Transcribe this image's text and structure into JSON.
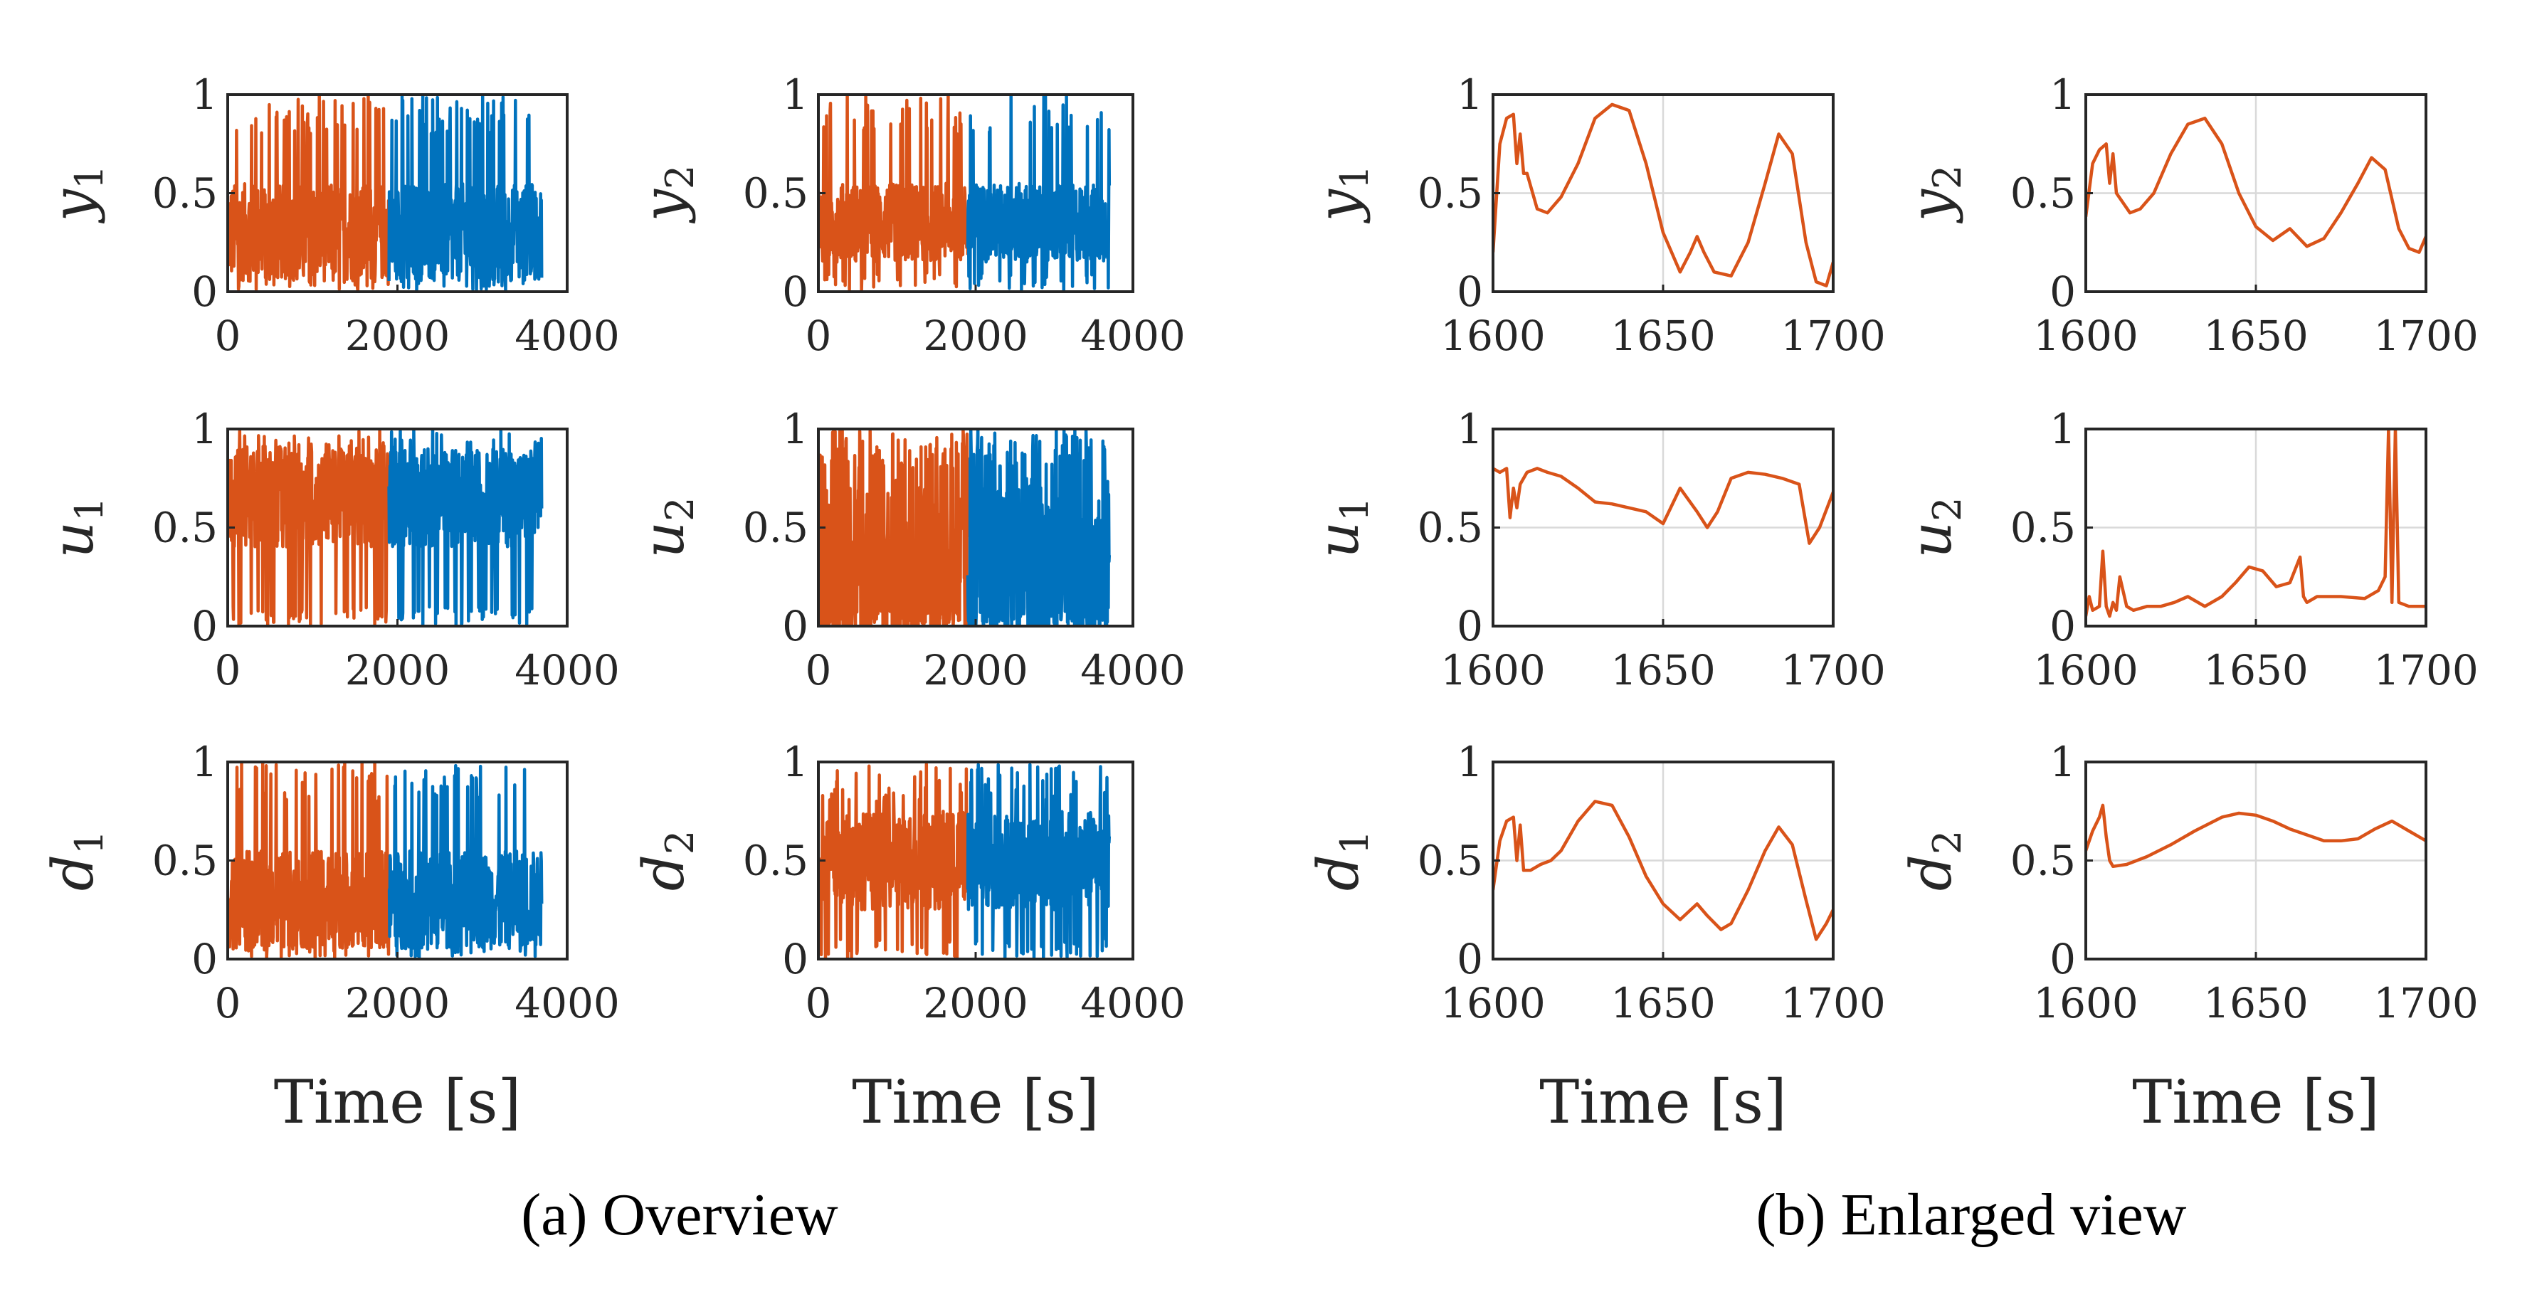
{
  "colors": {
    "train": "#D95319",
    "test": "#0072BD",
    "axis": "#262626",
    "grid": "#d9d9d9"
  },
  "captions": {
    "left": "(a) Overview",
    "right": "(b) Enlarged view"
  },
  "chart_data": [
    {
      "id": "ov-y1",
      "type": "line",
      "section": "overview",
      "ylabel_main": "y",
      "ylabel_sub": "1",
      "xlabel": "",
      "xlim": [
        0,
        4000
      ],
      "ylim": [
        0,
        1
      ],
      "xticks": [
        "0",
        "2000",
        "4000"
      ],
      "yticks": [
        "0",
        "0.5",
        "1"
      ],
      "grid": false,
      "segments": [
        {
          "name": "",
          "color": "train",
          "x_range": [
            0,
            1900
          ]
        },
        {
          "name": "",
          "color": "test",
          "x_range": [
            1900,
            3700
          ]
        }
      ]
    },
    {
      "id": "ov-y2",
      "type": "line",
      "section": "overview",
      "ylabel_main": "y",
      "ylabel_sub": "2",
      "xlabel": "",
      "xlim": [
        0,
        4000
      ],
      "ylim": [
        0,
        1
      ],
      "xticks": [
        "0",
        "2000",
        "4000"
      ],
      "yticks": [
        "0",
        "0.5",
        "1"
      ],
      "grid": false,
      "segments": [
        {
          "name": "",
          "color": "train",
          "x_range": [
            0,
            1900
          ]
        },
        {
          "name": "",
          "color": "test",
          "x_range": [
            1900,
            3700
          ]
        }
      ]
    },
    {
      "id": "ov-u1",
      "type": "line",
      "section": "overview",
      "ylabel_main": "u",
      "ylabel_sub": "1",
      "xlabel": "",
      "xlim": [
        0,
        4000
      ],
      "ylim": [
        0,
        1
      ],
      "xticks": [
        "0",
        "2000",
        "4000"
      ],
      "yticks": [
        "0",
        "0.5",
        "1"
      ],
      "grid": false,
      "segments": [
        {
          "name": "",
          "color": "train",
          "x_range": [
            0,
            1900
          ]
        },
        {
          "name": "",
          "color": "test",
          "x_range": [
            1900,
            3700
          ]
        }
      ]
    },
    {
      "id": "ov-u2",
      "type": "line",
      "section": "overview",
      "ylabel_main": "u",
      "ylabel_sub": "2",
      "xlabel": "",
      "xlim": [
        0,
        4000
      ],
      "ylim": [
        0,
        1
      ],
      "xticks": [
        "0",
        "2000",
        "4000"
      ],
      "yticks": [
        "0",
        "0.5",
        "1"
      ],
      "grid": false,
      "segments": [
        {
          "name": "",
          "color": "train",
          "x_range": [
            0,
            1900
          ]
        },
        {
          "name": "",
          "color": "test",
          "x_range": [
            1900,
            3700
          ]
        }
      ]
    },
    {
      "id": "ov-d1",
      "type": "line",
      "section": "overview",
      "ylabel_main": "d",
      "ylabel_sub": "1",
      "xlabel": "Time [s]",
      "xlim": [
        0,
        4000
      ],
      "ylim": [
        0,
        1
      ],
      "xticks": [
        "0",
        "2000",
        "4000"
      ],
      "yticks": [
        "0",
        "0.5",
        "1"
      ],
      "grid": false,
      "segments": [
        {
          "name": "",
          "color": "train",
          "x_range": [
            0,
            1900
          ]
        },
        {
          "name": "",
          "color": "test",
          "x_range": [
            1900,
            3700
          ]
        }
      ]
    },
    {
      "id": "ov-d2",
      "type": "line",
      "section": "overview",
      "ylabel_main": "d",
      "ylabel_sub": "2",
      "xlabel": "Time [s]",
      "xlim": [
        0,
        4000
      ],
      "ylim": [
        0,
        1
      ],
      "xticks": [
        "0",
        "2000",
        "4000"
      ],
      "yticks": [
        "0",
        "0.5",
        "1"
      ],
      "grid": false,
      "segments": [
        {
          "name": "",
          "color": "train",
          "x_range": [
            0,
            1900
          ]
        },
        {
          "name": "",
          "color": "test",
          "x_range": [
            1900,
            3700
          ]
        }
      ]
    },
    {
      "id": "en-y1",
      "type": "line",
      "section": "enlarged",
      "ylabel_main": "y",
      "ylabel_sub": "1",
      "xlabel": "",
      "xlim": [
        1600,
        1700
      ],
      "ylim": [
        0,
        1
      ],
      "xticks": [
        "1600",
        "1650",
        "1700"
      ],
      "yticks": [
        "0",
        "0.5",
        "1"
      ],
      "grid": true,
      "series": [
        {
          "name": "",
          "color": "train",
          "x": [
            1600,
            1602,
            1604,
            1606,
            1607,
            1608,
            1609,
            1610,
            1613,
            1616,
            1620,
            1625,
            1630,
            1635,
            1640,
            1645,
            1650,
            1655,
            1658,
            1660,
            1662,
            1665,
            1670,
            1675,
            1680,
            1684,
            1688,
            1692,
            1695,
            1698,
            1700
          ],
          "y": [
            0.2,
            0.75,
            0.88,
            0.9,
            0.65,
            0.8,
            0.6,
            0.6,
            0.42,
            0.4,
            0.48,
            0.65,
            0.88,
            0.95,
            0.92,
            0.65,
            0.3,
            0.1,
            0.2,
            0.28,
            0.2,
            0.1,
            0.08,
            0.25,
            0.55,
            0.8,
            0.7,
            0.25,
            0.05,
            0.03,
            0.15
          ]
        }
      ]
    },
    {
      "id": "en-y2",
      "type": "line",
      "section": "enlarged",
      "ylabel_main": "y",
      "ylabel_sub": "2",
      "xlabel": "",
      "xlim": [
        1600,
        1700
      ],
      "ylim": [
        0,
        1
      ],
      "xticks": [
        "1600",
        "1650",
        "1700"
      ],
      "yticks": [
        "0",
        "0.5",
        "1"
      ],
      "grid": true,
      "series": [
        {
          "name": "",
          "color": "train",
          "x": [
            1600,
            1602,
            1604,
            1606,
            1607,
            1608,
            1609,
            1611,
            1613,
            1616,
            1620,
            1625,
            1630,
            1635,
            1640,
            1645,
            1650,
            1655,
            1660,
            1665,
            1670,
            1675,
            1680,
            1684,
            1688,
            1692,
            1695,
            1698,
            1700
          ],
          "y": [
            0.38,
            0.65,
            0.72,
            0.75,
            0.55,
            0.7,
            0.5,
            0.45,
            0.4,
            0.42,
            0.5,
            0.7,
            0.85,
            0.88,
            0.75,
            0.5,
            0.33,
            0.26,
            0.32,
            0.23,
            0.27,
            0.4,
            0.55,
            0.68,
            0.62,
            0.32,
            0.22,
            0.2,
            0.28
          ]
        }
      ]
    },
    {
      "id": "en-u1",
      "type": "line",
      "section": "enlarged",
      "ylabel_main": "u",
      "ylabel_sub": "1",
      "xlabel": "",
      "xlim": [
        1600,
        1700
      ],
      "ylim": [
        0,
        1
      ],
      "xticks": [
        "1600",
        "1650",
        "1700"
      ],
      "yticks": [
        "0",
        "0.5",
        "1"
      ],
      "grid": true,
      "series": [
        {
          "name": "",
          "color": "train",
          "x": [
            1600,
            1602,
            1604,
            1605,
            1606,
            1607,
            1608,
            1610,
            1613,
            1616,
            1620,
            1625,
            1630,
            1635,
            1640,
            1645,
            1650,
            1655,
            1660,
            1663,
            1666,
            1670,
            1675,
            1680,
            1685,
            1690,
            1693,
            1696,
            1700
          ],
          "y": [
            0.8,
            0.78,
            0.8,
            0.55,
            0.7,
            0.6,
            0.72,
            0.78,
            0.8,
            0.78,
            0.76,
            0.7,
            0.63,
            0.62,
            0.6,
            0.58,
            0.52,
            0.7,
            0.58,
            0.5,
            0.58,
            0.75,
            0.78,
            0.77,
            0.75,
            0.72,
            0.42,
            0.5,
            0.68
          ]
        }
      ]
    },
    {
      "id": "en-u2",
      "type": "line",
      "section": "enlarged",
      "ylabel_main": "u",
      "ylabel_sub": "2",
      "xlabel": "",
      "xlim": [
        1600,
        1700
      ],
      "ylim": [
        0,
        1
      ],
      "xticks": [
        "1600",
        "1650",
        "1700"
      ],
      "yticks": [
        "0",
        "0.5",
        "1"
      ],
      "grid": true,
      "series": [
        {
          "name": "",
          "color": "train",
          "x": [
            1600,
            1601,
            1602,
            1604,
            1605,
            1606,
            1607,
            1608,
            1609,
            1610,
            1612,
            1614,
            1618,
            1622,
            1626,
            1630,
            1635,
            1640,
            1644,
            1648,
            1652,
            1656,
            1660,
            1663,
            1664,
            1665,
            1668,
            1675,
            1682,
            1686,
            1688,
            1689,
            1690,
            1691,
            1692,
            1695,
            1700
          ],
          "y": [
            0.05,
            0.15,
            0.08,
            0.1,
            0.38,
            0.1,
            0.05,
            0.12,
            0.08,
            0.25,
            0.1,
            0.08,
            0.1,
            0.1,
            0.12,
            0.15,
            0.1,
            0.15,
            0.22,
            0.3,
            0.28,
            0.2,
            0.22,
            0.35,
            0.15,
            0.12,
            0.15,
            0.15,
            0.14,
            0.18,
            0.25,
            1.0,
            0.12,
            1.0,
            0.12,
            0.1,
            0.1
          ]
        }
      ]
    },
    {
      "id": "en-d1",
      "type": "line",
      "section": "enlarged",
      "ylabel_main": "d",
      "ylabel_sub": "1",
      "xlabel": "Time [s]",
      "xlim": [
        1600,
        1700
      ],
      "ylim": [
        0,
        1
      ],
      "xticks": [
        "1600",
        "1650",
        "1700"
      ],
      "yticks": [
        "0",
        "0.5",
        "1"
      ],
      "grid": true,
      "series": [
        {
          "name": "",
          "color": "train",
          "x": [
            1600,
            1602,
            1604,
            1606,
            1607,
            1608,
            1609,
            1611,
            1614,
            1617,
            1620,
            1625,
            1630,
            1635,
            1640,
            1645,
            1650,
            1655,
            1660,
            1663,
            1667,
            1670,
            1675,
            1680,
            1684,
            1688,
            1692,
            1695,
            1698,
            1700
          ],
          "y": [
            0.35,
            0.6,
            0.7,
            0.72,
            0.5,
            0.68,
            0.45,
            0.45,
            0.48,
            0.5,
            0.55,
            0.7,
            0.8,
            0.78,
            0.62,
            0.42,
            0.28,
            0.2,
            0.28,
            0.22,
            0.15,
            0.18,
            0.35,
            0.55,
            0.67,
            0.58,
            0.3,
            0.1,
            0.18,
            0.25
          ]
        }
      ]
    },
    {
      "id": "en-d2",
      "type": "line",
      "section": "enlarged",
      "ylabel_main": "d",
      "ylabel_sub": "2",
      "xlabel": "Time [s]",
      "xlim": [
        1600,
        1700
      ],
      "ylim": [
        0,
        1
      ],
      "xticks": [
        "1600",
        "1650",
        "1700"
      ],
      "yticks": [
        "0",
        "0.5",
        "1"
      ],
      "grid": true,
      "series": [
        {
          "name": "",
          "color": "train",
          "x": [
            1600,
            1602,
            1604,
            1605,
            1606,
            1607,
            1608,
            1612,
            1618,
            1625,
            1632,
            1640,
            1645,
            1650,
            1655,
            1660,
            1665,
            1670,
            1675,
            1680,
            1685,
            1690,
            1695,
            1700
          ],
          "y": [
            0.55,
            0.65,
            0.72,
            0.78,
            0.62,
            0.5,
            0.47,
            0.48,
            0.52,
            0.58,
            0.65,
            0.72,
            0.74,
            0.73,
            0.7,
            0.66,
            0.63,
            0.6,
            0.6,
            0.61,
            0.66,
            0.7,
            0.65,
            0.6
          ]
        }
      ]
    }
  ]
}
